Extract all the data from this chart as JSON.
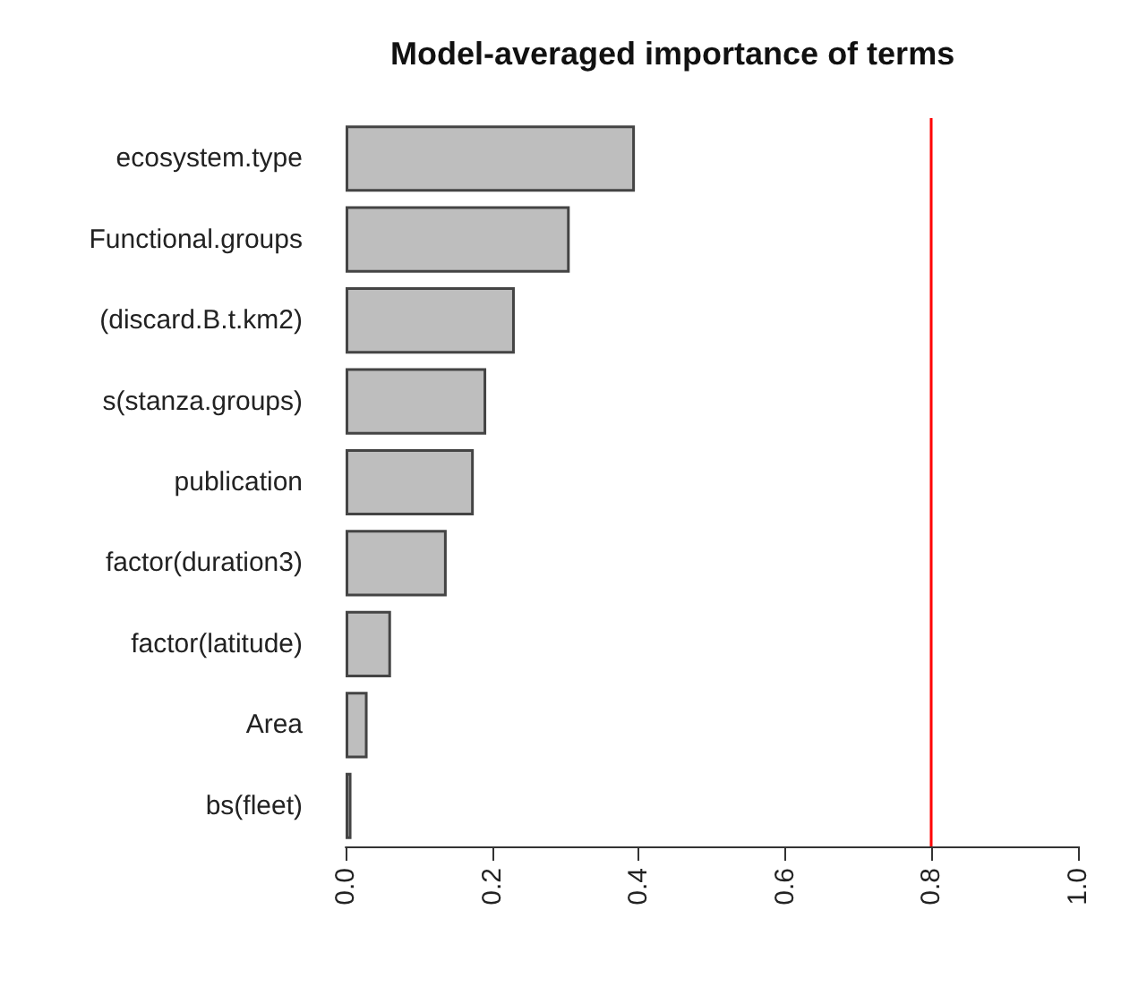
{
  "chart_data": {
    "type": "bar",
    "orientation": "horizontal",
    "title": "Model-averaged importance of terms",
    "categories": [
      "ecosystem.type",
      "Functional.groups",
      "(discard.B.t.km2)",
      "s(stanza.groups)",
      "publication",
      "factor(duration3)",
      "factor(latitude)",
      "Area",
      "bs(fleet)"
    ],
    "values": [
      0.395,
      0.306,
      0.231,
      0.192,
      0.175,
      0.138,
      0.062,
      0.03,
      0.008
    ],
    "color": "#bebebe",
    "xlim": [
      0,
      1
    ],
    "xticks": [
      {
        "value": 0,
        "label": "0.0"
      },
      {
        "value": 0.2,
        "label": "0.2"
      },
      {
        "value": 0.4,
        "label": "0.4"
      },
      {
        "value": 0.6,
        "label": "0.6"
      },
      {
        "value": 0.8,
        "label": "0.8"
      },
      {
        "value": 1,
        "label": "1.0"
      }
    ],
    "ref_lines": [
      {
        "axis": "x",
        "value": 0.8,
        "color": "#ff0000"
      }
    ]
  }
}
